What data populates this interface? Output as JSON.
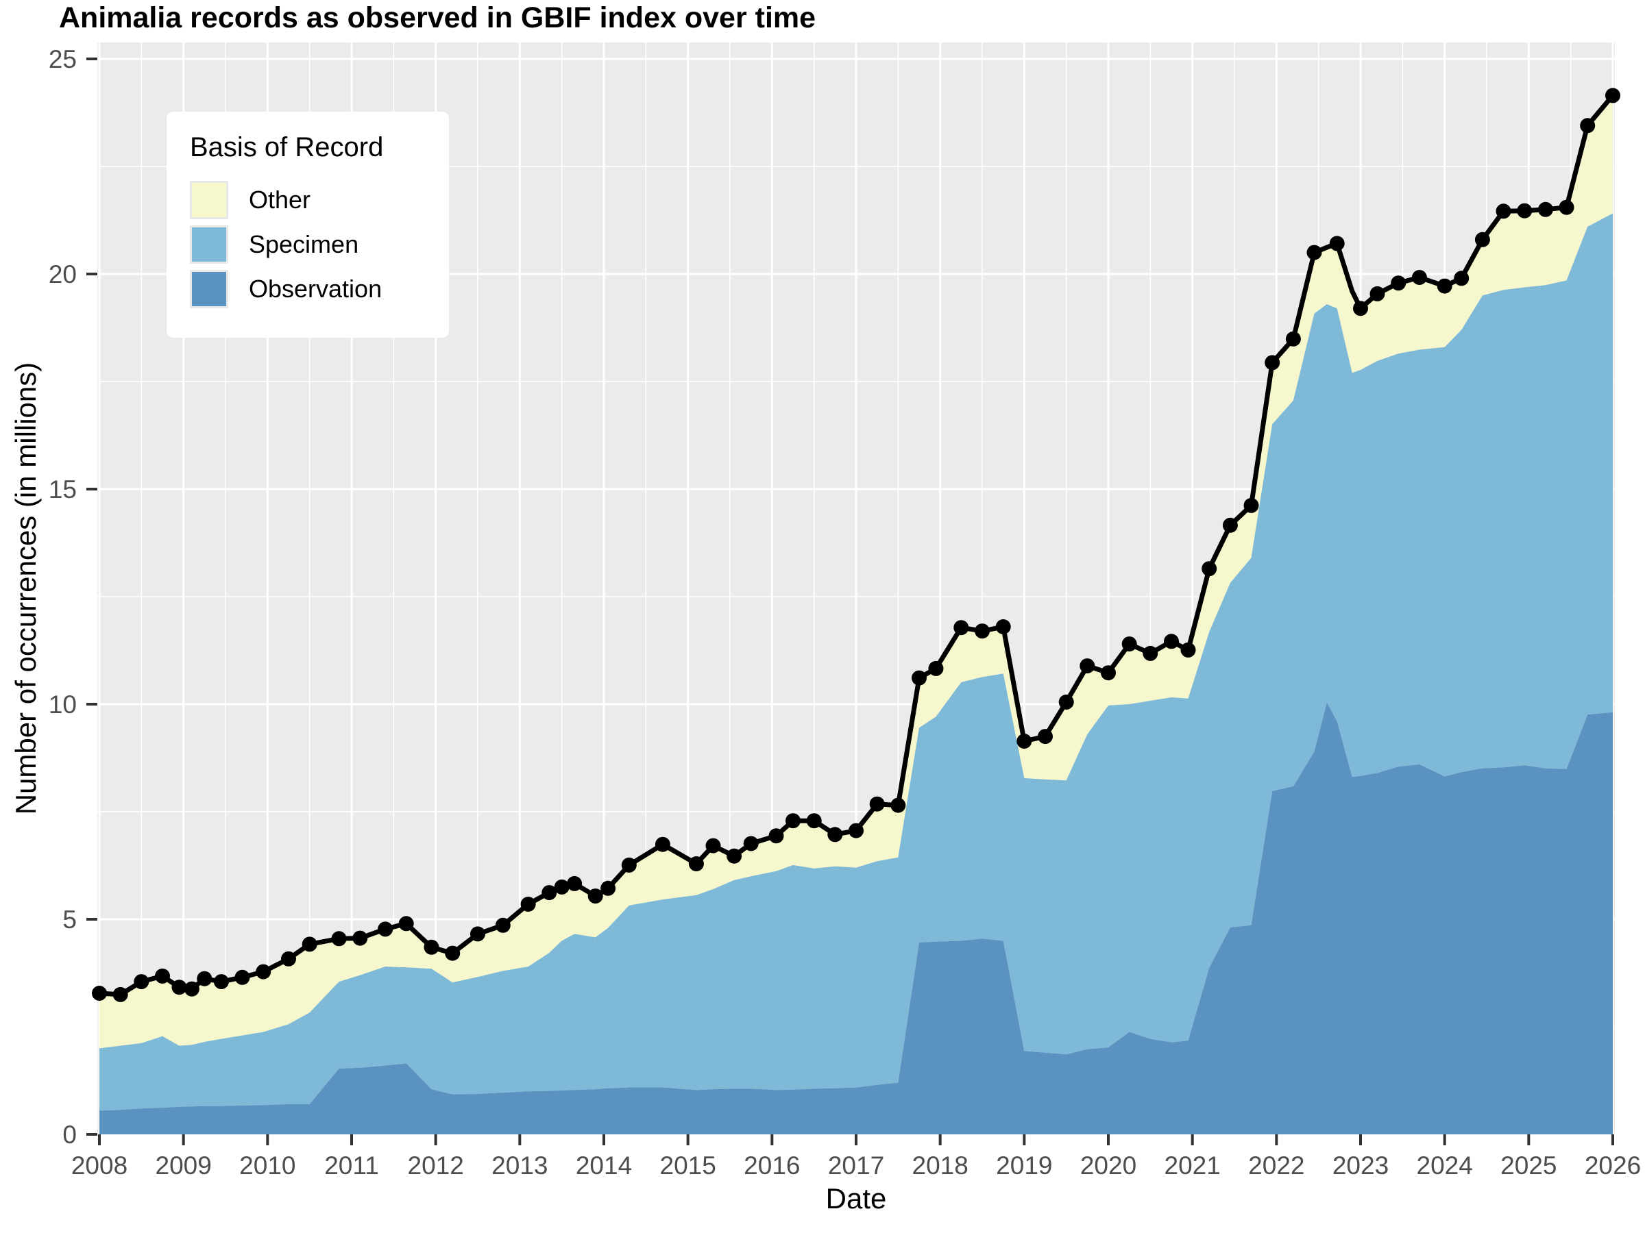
{
  "title": "Animalia records as observed in GBIF index over time",
  "axes": {
    "x_label": "Date",
    "y_label": "Number of occurrences (in millions)",
    "x_ticks": [
      2008,
      2009,
      2010,
      2011,
      2012,
      2013,
      2014,
      2015,
      2016,
      2017,
      2018,
      2019,
      2020,
      2021,
      2022,
      2023,
      2024,
      2025,
      2026
    ],
    "y_ticks": [
      0,
      5,
      10,
      15,
      20,
      25
    ],
    "x_range": [
      2008,
      2026
    ],
    "y_range": [
      0,
      25.4
    ],
    "grid": "major white + minor white on gray panel"
  },
  "legend": {
    "title": "Basis of Record",
    "items": [
      {
        "label": "Other",
        "color": "#F7F7CD"
      },
      {
        "label": "Specimen",
        "color": "#7EBAD8"
      },
      {
        "label": "Observation",
        "color": "#5A92C2"
      }
    ],
    "position": "top-left inside panel"
  },
  "style": {
    "panel_bg": "#EBEBEB",
    "grid_color": "#FFFFFF",
    "axis_text_color": "#4D4D4D",
    "tick_mark_color": "#333333",
    "line_color": "#000000"
  },
  "chart_data": {
    "type": "area",
    "stacked": true,
    "title": "Animalia records as observed in GBIF index over time",
    "xlabel": "Date",
    "ylabel": "Number of occurrences (in millions)",
    "xlim": [
      2008,
      2026
    ],
    "ylim": [
      0,
      25
    ],
    "legend_position": "top-left",
    "note": "values in millions; stacked bands: observation = 0 to observation_top, specimen = observation_top to specimen_top, other = specimen_top to total; black line with points = total",
    "columns": [
      "year",
      "total",
      "specimen_top",
      "observation_top",
      "dot"
    ],
    "samples": [
      [
        2008.0,
        3.28,
        2.0,
        0.55,
        1
      ],
      [
        2008.25,
        3.25,
        2.06,
        0.57,
        1
      ],
      [
        2008.5,
        3.55,
        2.12,
        0.6,
        1
      ],
      [
        2008.75,
        3.68,
        2.28,
        0.62,
        1
      ],
      [
        2008.95,
        3.42,
        2.06,
        0.64,
        1
      ],
      [
        2009.1,
        3.38,
        2.08,
        0.65,
        1
      ],
      [
        2009.25,
        3.62,
        2.15,
        0.66,
        1
      ],
      [
        2009.45,
        3.55,
        2.22,
        0.66,
        1
      ],
      [
        2009.7,
        3.65,
        2.3,
        0.67,
        1
      ],
      [
        2009.95,
        3.78,
        2.38,
        0.68,
        1
      ],
      [
        2010.25,
        4.08,
        2.56,
        0.7,
        1
      ],
      [
        2010.5,
        4.42,
        2.83,
        0.7,
        1
      ],
      [
        2010.85,
        4.55,
        3.55,
        1.53,
        1
      ],
      [
        2011.1,
        4.56,
        3.7,
        1.55,
        1
      ],
      [
        2011.4,
        4.77,
        3.9,
        1.6,
        1
      ],
      [
        2011.65,
        4.9,
        3.88,
        1.65,
        1
      ],
      [
        2011.95,
        4.35,
        3.85,
        1.05,
        1
      ],
      [
        2012.2,
        4.21,
        3.53,
        0.93,
        1
      ],
      [
        2012.5,
        4.66,
        3.66,
        0.94,
        1
      ],
      [
        2012.8,
        4.86,
        3.8,
        0.97,
        1
      ],
      [
        2013.1,
        5.35,
        3.9,
        1.0,
        1
      ],
      [
        2013.35,
        5.62,
        4.22,
        1.01,
        1
      ],
      [
        2013.5,
        5.75,
        4.5,
        1.02,
        1
      ],
      [
        2013.65,
        5.83,
        4.66,
        1.03,
        1
      ],
      [
        2013.9,
        5.54,
        4.58,
        1.05,
        1
      ],
      [
        2014.05,
        5.72,
        4.8,
        1.07,
        1
      ],
      [
        2014.3,
        6.26,
        5.32,
        1.09,
        1
      ],
      [
        2014.7,
        6.74,
        5.46,
        1.09,
        1
      ],
      [
        2015.1,
        6.29,
        5.56,
        1.03,
        1
      ],
      [
        2015.3,
        6.71,
        5.7,
        1.05,
        1
      ],
      [
        2015.55,
        6.47,
        5.91,
        1.06,
        1
      ],
      [
        2015.75,
        6.76,
        6.0,
        1.06,
        1
      ],
      [
        2016.05,
        6.94,
        6.12,
        1.03,
        1
      ],
      [
        2016.25,
        7.29,
        6.26,
        1.04,
        1
      ],
      [
        2016.5,
        7.29,
        6.18,
        1.06,
        1
      ],
      [
        2016.75,
        6.97,
        6.23,
        1.07,
        1
      ],
      [
        2017.0,
        7.06,
        6.2,
        1.09,
        1
      ],
      [
        2017.25,
        7.68,
        6.35,
        1.15,
        1
      ],
      [
        2017.5,
        7.65,
        6.44,
        1.2,
        1
      ],
      [
        2017.75,
        10.61,
        9.45,
        4.46,
        1
      ],
      [
        2017.95,
        10.83,
        9.71,
        4.48,
        1
      ],
      [
        2018.25,
        11.78,
        10.51,
        4.5,
        1
      ],
      [
        2018.5,
        11.7,
        10.63,
        4.55,
        1
      ],
      [
        2018.75,
        11.8,
        10.71,
        4.5,
        1
      ],
      [
        2019.0,
        9.14,
        8.28,
        1.94,
        1
      ],
      [
        2019.25,
        9.25,
        8.25,
        1.9,
        1
      ],
      [
        2019.5,
        10.05,
        8.23,
        1.86,
        1
      ],
      [
        2019.75,
        10.89,
        9.3,
        1.98,
        1
      ],
      [
        2020.0,
        10.73,
        9.97,
        2.02,
        1
      ],
      [
        2020.25,
        11.4,
        10.0,
        2.38,
        1
      ],
      [
        2020.5,
        11.18,
        10.08,
        2.22,
        1
      ],
      [
        2020.75,
        11.46,
        10.16,
        2.14,
        1
      ],
      [
        2020.95,
        11.26,
        10.13,
        2.18,
        1
      ],
      [
        2021.2,
        13.15,
        11.68,
        3.87,
        1
      ],
      [
        2021.45,
        14.16,
        12.82,
        4.81,
        1
      ],
      [
        2021.7,
        14.62,
        13.4,
        4.86,
        1
      ],
      [
        2021.95,
        17.94,
        16.51,
        7.98,
        1
      ],
      [
        2022.2,
        18.49,
        17.06,
        8.09,
        1
      ],
      [
        2022.45,
        20.5,
        19.08,
        8.9,
        1
      ],
      [
        2022.6,
        20.62,
        19.3,
        10.04,
        0
      ],
      [
        2022.72,
        20.71,
        19.2,
        9.6,
        1
      ],
      [
        2022.9,
        19.6,
        17.7,
        8.31,
        0
      ],
      [
        2023.0,
        19.2,
        17.77,
        8.33,
        1
      ],
      [
        2023.2,
        19.54,
        17.98,
        8.4,
        1
      ],
      [
        2023.45,
        19.79,
        18.15,
        8.55,
        1
      ],
      [
        2023.7,
        19.92,
        18.24,
        8.6,
        1
      ],
      [
        2024.0,
        19.72,
        18.3,
        8.32,
        1
      ],
      [
        2024.2,
        19.9,
        18.7,
        8.42,
        1
      ],
      [
        2024.45,
        20.8,
        19.5,
        8.51,
        1
      ],
      [
        2024.7,
        21.46,
        19.63,
        8.53,
        1
      ],
      [
        2024.95,
        21.47,
        19.69,
        8.58,
        1
      ],
      [
        2025.2,
        21.5,
        19.74,
        8.51,
        1
      ],
      [
        2025.45,
        21.55,
        19.85,
        8.49,
        1
      ],
      [
        2025.7,
        23.45,
        21.1,
        9.76,
        1
      ],
      [
        2026.0,
        24.15,
        21.41,
        9.81,
        1
      ]
    ]
  }
}
